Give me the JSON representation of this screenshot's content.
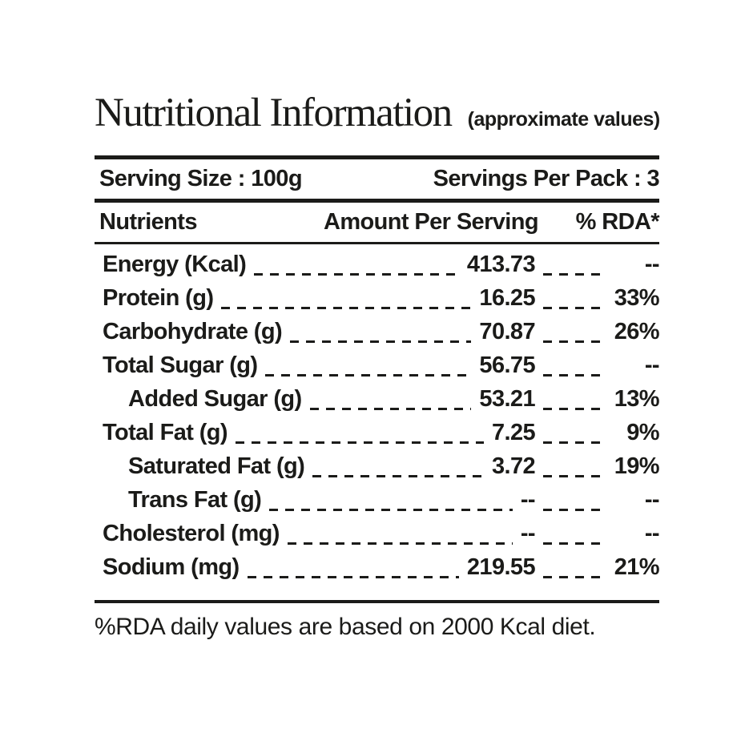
{
  "title": {
    "main": "Nutritional Information",
    "sub": "(approximate values)"
  },
  "serving": {
    "size": "Serving Size : 100g",
    "per_pack": "Servings Per Pack : 3"
  },
  "table": {
    "headers": {
      "nutrients": "Nutrients",
      "amount": "Amount Per Serving",
      "rda": "% RDA*"
    },
    "rows": [
      {
        "label": "Energy (Kcal)",
        "amount": "413.73",
        "rda": "--",
        "indent": false
      },
      {
        "label": "Protein (g)",
        "amount": "16.25",
        "rda": "33%",
        "indent": false
      },
      {
        "label": "Carbohydrate (g)",
        "amount": "70.87",
        "rda": "26%",
        "indent": false
      },
      {
        "label": "Total Sugar (g)",
        "amount": "56.75",
        "rda": "--",
        "indent": false
      },
      {
        "label": "Added Sugar (g)",
        "amount": "53.21",
        "rda": "13%",
        "indent": true
      },
      {
        "label": "Total Fat (g)",
        "amount": "7.25",
        "rda": "9%",
        "indent": false
      },
      {
        "label": "Saturated Fat (g)",
        "amount": "3.72",
        "rda": "19%",
        "indent": true
      },
      {
        "label": "Trans Fat (g)",
        "amount": "--",
        "rda": "--",
        "indent": true
      },
      {
        "label": "Cholesterol (mg)",
        "amount": "--",
        "rda": "--",
        "indent": false
      },
      {
        "label": "Sodium (mg)",
        "amount": "219.55",
        "rda": "21%",
        "indent": false
      }
    ]
  },
  "footer": {
    "note": "%RDA daily values are based on 2000 Kcal diet."
  },
  "colors": {
    "text": "#1b1b19",
    "background": "#ffffff"
  }
}
